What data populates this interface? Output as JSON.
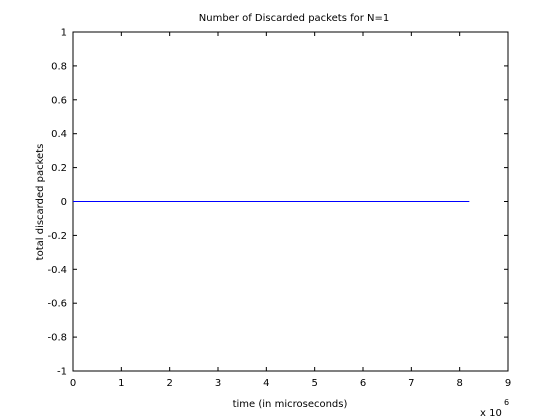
{
  "chart_data": {
    "type": "line",
    "title": "Number of Discarded packets for N=1",
    "xlabel": "time (in microseconds)",
    "ylabel": "total discarded packets",
    "x_multiplier_label": "x 10",
    "x_multiplier_exponent": "6",
    "xlim": [
      0,
      9
    ],
    "ylim": [
      -1,
      1
    ],
    "x_ticks": [
      0,
      1,
      2,
      3,
      4,
      5,
      6,
      7,
      8,
      9
    ],
    "y_ticks": [
      -1,
      -0.8,
      -0.6,
      -0.4,
      -0.2,
      0,
      0.2,
      0.4,
      0.6,
      0.8,
      1
    ],
    "x_tick_labels": [
      "0",
      "1",
      "2",
      "3",
      "4",
      "5",
      "6",
      "7",
      "8",
      "9"
    ],
    "y_tick_labels": [
      "-1",
      "-0.8",
      "-0.6",
      "-0.4",
      "-0.2",
      "0",
      "0.2",
      "0.4",
      "0.6",
      "0.8",
      "1"
    ],
    "grid": false,
    "series": [
      {
        "color": "#0000ff",
        "x": [
          0,
          8.2
        ],
        "y": [
          0,
          0
        ]
      }
    ]
  }
}
